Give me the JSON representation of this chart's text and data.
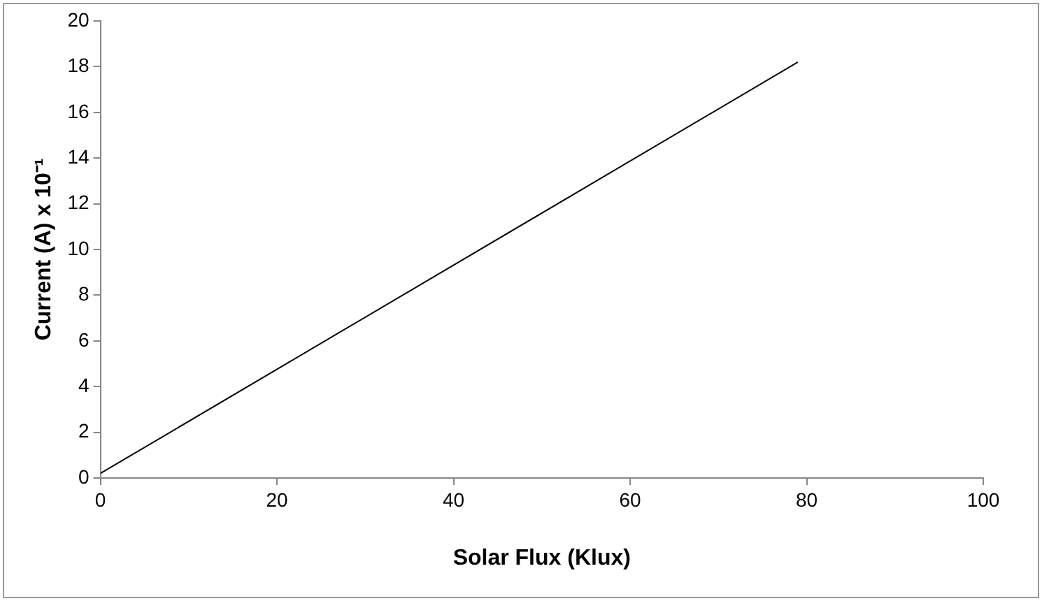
{
  "chart_data": {
    "type": "line",
    "xlabel": "Solar Flux (Klux)",
    "ylabel": "Current (A) x 10⁻¹",
    "series": [
      {
        "color": "#000000",
        "x": [
          0,
          79
        ],
        "values": [
          0.2,
          18.2
        ]
      }
    ],
    "xlim": [
      0,
      100
    ],
    "xticks": [
      0,
      20,
      40,
      60,
      80,
      100
    ],
    "ylim": [
      0,
      20
    ],
    "yticks": [
      0,
      2,
      4,
      6,
      8,
      10,
      12,
      14,
      16,
      18,
      20
    ],
    "grid": false,
    "legend": false,
    "marker": "none",
    "line_style": "solid"
  }
}
